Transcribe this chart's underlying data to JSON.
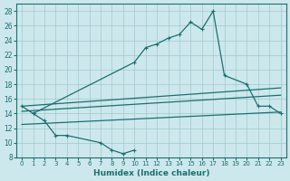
{
  "bg_color": "#cde8ec",
  "grid_color": "#a0c8cc",
  "line_color": "#1a7070",
  "xlabel": "Humidex (Indice chaleur)",
  "ylim": [
    8,
    29
  ],
  "xlim": [
    -0.5,
    23.5
  ],
  "yticks": [
    8,
    10,
    12,
    14,
    16,
    18,
    20,
    22,
    24,
    26,
    28
  ],
  "xticks": [
    0,
    1,
    2,
    3,
    4,
    5,
    6,
    7,
    8,
    9,
    10,
    11,
    12,
    13,
    14,
    15,
    16,
    17,
    18,
    19,
    20,
    21,
    22,
    23
  ],
  "main_x": [
    0,
    1,
    10,
    11,
    12,
    13,
    14,
    15,
    16,
    17,
    18,
    20,
    21,
    22,
    23
  ],
  "main_y": [
    15,
    14,
    21,
    23,
    23.5,
    24.3,
    24.8,
    26.5,
    25.5,
    28,
    19.2,
    18,
    15,
    15,
    14
  ],
  "low_x": [
    1,
    2,
    3,
    4,
    7,
    8,
    9,
    10
  ],
  "low_y": [
    14,
    13,
    11,
    11,
    10,
    9,
    8.5,
    9
  ],
  "trend1_x": [
    0,
    23
  ],
  "trend1_y": [
    15.0,
    17.5
  ],
  "trend2_x": [
    0,
    23
  ],
  "trend2_y": [
    14.3,
    16.5
  ],
  "trend3_x": [
    0,
    23
  ],
  "trend3_y": [
    12.5,
    14.2
  ],
  "marker": "+",
  "markersize": 3.5,
  "lw": 0.9
}
